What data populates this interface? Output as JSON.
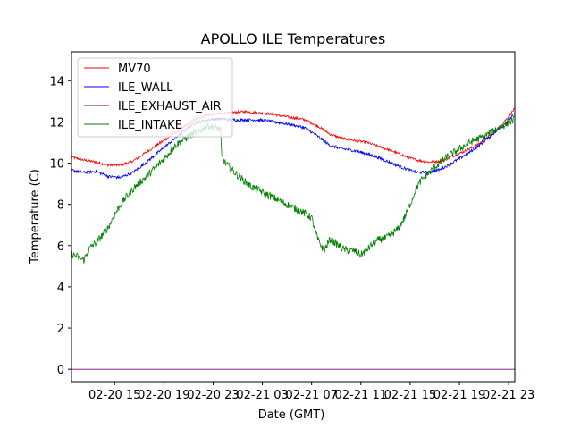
{
  "chart_data": {
    "type": "line",
    "title": "APOLLO ILE Temperatures",
    "xlabel": "Date (GMT)",
    "ylabel": "Temperature (C)",
    "xlim": [
      11.5,
      47.5
    ],
    "ylim": [
      -0.6,
      15.4
    ],
    "grid": false,
    "legend_position": "top-left",
    "x_ticks": [
      {
        "value": 15,
        "label": "02-20 15"
      },
      {
        "value": 19,
        "label": "02-20 19"
      },
      {
        "value": 23,
        "label": "02-20 23"
      },
      {
        "value": 27,
        "label": "02-21 03"
      },
      {
        "value": 31,
        "label": "02-21 07"
      },
      {
        "value": 35,
        "label": "02-21 11"
      },
      {
        "value": 39,
        "label": "02-21 15"
      },
      {
        "value": 43,
        "label": "02-21 19"
      },
      {
        "value": 47,
        "label": "02-21 23"
      }
    ],
    "y_ticks": [
      0,
      2,
      4,
      6,
      8,
      10,
      12,
      14
    ],
    "x_unit": "hours since 02-20 00:00 GMT",
    "series": [
      {
        "name": "MV70",
        "color": "#ff0000",
        "noise": 0.06,
        "x": [
          11.5,
          12.5,
          13.5,
          14.5,
          15.5,
          16.5,
          17.5,
          18.5,
          19.5,
          20.5,
          21.5,
          22.5,
          23.5,
          24.5,
          25.5,
          26.5,
          27.5,
          28.5,
          29.5,
          30.5,
          31.5,
          32.5,
          33.5,
          34.5,
          35.5,
          36.5,
          37.5,
          38.5,
          39.5,
          40.5,
          41.5,
          42.5,
          43.5,
          44.5,
          45.5,
          46.5,
          47.5
        ],
        "y": [
          10.3,
          10.15,
          10.05,
          9.9,
          9.9,
          10.1,
          10.5,
          10.9,
          11.3,
          11.7,
          12.1,
          12.35,
          12.4,
          12.45,
          12.5,
          12.45,
          12.4,
          12.3,
          12.2,
          12.1,
          11.8,
          11.4,
          11.2,
          11.1,
          11.0,
          10.8,
          10.6,
          10.35,
          10.15,
          10.05,
          10.1,
          10.35,
          10.6,
          10.9,
          11.35,
          11.9,
          12.65
        ]
      },
      {
        "name": "ILE_WALL",
        "color": "#0000ff",
        "noise": 0.07,
        "x": [
          11.5,
          12.5,
          13.5,
          14.5,
          15.5,
          16.5,
          17.5,
          18.5,
          19.5,
          20.5,
          21.5,
          22.5,
          23.5,
          24.5,
          25.5,
          26.5,
          27.5,
          28.5,
          29.5,
          30.5,
          31.5,
          32.5,
          33.5,
          34.5,
          35.5,
          36.5,
          37.5,
          38.5,
          39.5,
          40.5,
          41.5,
          42.5,
          43.5,
          44.5,
          45.5,
          46.5,
          47.5
        ],
        "y": [
          9.65,
          9.55,
          9.6,
          9.35,
          9.3,
          9.55,
          10.0,
          10.5,
          11.0,
          11.5,
          11.95,
          12.1,
          12.15,
          12.1,
          12.1,
          12.1,
          12.05,
          11.95,
          11.85,
          11.7,
          11.3,
          10.85,
          10.7,
          10.6,
          10.45,
          10.25,
          10.0,
          9.75,
          9.55,
          9.55,
          9.7,
          10.05,
          10.4,
          10.8,
          11.3,
          11.8,
          12.4
        ]
      },
      {
        "name": "ILE_EXHAUST_AIR",
        "color": "#800080",
        "noise": 0,
        "x": [
          11.5,
          47.5
        ],
        "y": [
          0.0,
          0.0
        ]
      },
      {
        "name": "ILE_INTAKE",
        "color": "#008000",
        "noise": 0.18,
        "x": [
          11.5,
          12.0,
          12.5,
          13.0,
          13.5,
          14.0,
          14.5,
          15.0,
          15.5,
          16.0,
          16.5,
          17.0,
          17.5,
          18.0,
          19.0,
          20.0,
          21.0,
          22.0,
          22.5,
          23.0,
          23.6,
          23.7,
          24.0,
          25.0,
          26.0,
          27.0,
          28.0,
          29.0,
          30.0,
          30.5,
          31.0,
          31.5,
          32.0,
          32.5,
          33.0,
          33.5,
          34.0,
          34.5,
          35.0,
          35.5,
          36.0,
          36.5,
          37.0,
          37.5,
          38.0,
          38.5,
          39.0,
          39.5,
          40.0,
          40.5,
          41.0,
          42.0,
          43.0,
          44.0,
          45.0,
          46.0,
          47.0,
          47.5
        ],
        "y": [
          5.6,
          5.45,
          5.3,
          5.9,
          6.15,
          6.5,
          6.9,
          7.5,
          8.0,
          8.4,
          8.75,
          9.05,
          9.3,
          9.6,
          10.2,
          10.9,
          11.3,
          11.6,
          11.8,
          11.75,
          11.65,
          10.3,
          10.0,
          9.4,
          8.9,
          8.6,
          8.3,
          8.0,
          7.7,
          7.55,
          7.35,
          6.3,
          5.75,
          6.3,
          6.1,
          5.85,
          5.75,
          5.75,
          5.55,
          5.8,
          6.1,
          6.3,
          6.35,
          6.55,
          6.8,
          7.3,
          8.0,
          8.8,
          9.25,
          9.5,
          9.8,
          10.3,
          10.7,
          11.05,
          11.3,
          11.65,
          11.95,
          12.15
        ]
      }
    ]
  }
}
